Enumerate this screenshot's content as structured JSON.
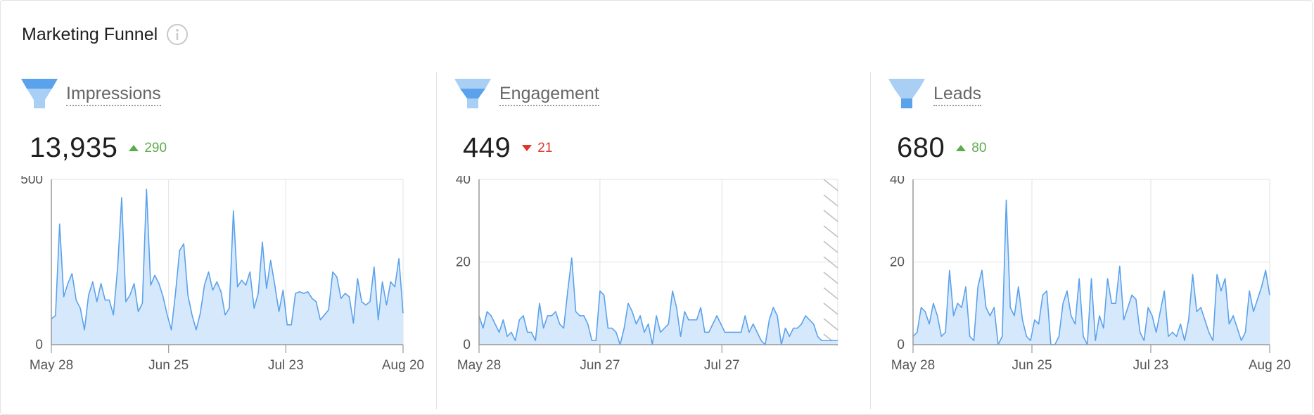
{
  "header": {
    "title": "Marketing Funnel",
    "info_icon": "info-circle-icon"
  },
  "colors": {
    "line": "#5aa2ec",
    "fill": "#d6e8fb",
    "up": "#5cab4d",
    "down": "#e0352b",
    "grid": "#e2e2e2",
    "funnel_dark": "#5aa2ec",
    "funnel_light": "#a9cff5"
  },
  "panels": [
    {
      "name": "Impressions",
      "value": "13,935",
      "delta": "290",
      "direction": "up",
      "icon": "funnel-top-icon"
    },
    {
      "name": "Engagement",
      "value": "449",
      "delta": "21",
      "direction": "down",
      "icon": "funnel-middle-icon"
    },
    {
      "name": "Leads",
      "value": "680",
      "delta": "80",
      "direction": "up",
      "icon": "funnel-bottom-icon"
    }
  ],
  "chart_data": [
    {
      "type": "area",
      "title": "Impressions",
      "x_ticks": [
        "May 28",
        "Jun 25",
        "Jul 23",
        "Aug 20"
      ],
      "y_ticks": [
        "0",
        "500"
      ],
      "ylim": [
        0,
        500
      ],
      "grid": true,
      "values": [
        78,
        88,
        365,
        145,
        185,
        215,
        135,
        110,
        45,
        150,
        190,
        130,
        185,
        135,
        135,
        90,
        230,
        445,
        130,
        150,
        185,
        100,
        125,
        470,
        180,
        210,
        185,
        145,
        90,
        45,
        155,
        285,
        305,
        150,
        90,
        45,
        95,
        180,
        220,
        165,
        190,
        160,
        90,
        110,
        405,
        175,
        195,
        180,
        220,
        110,
        155,
        310,
        170,
        255,
        180,
        100,
        165,
        60,
        60,
        155,
        160,
        155,
        160,
        140,
        130,
        75,
        90,
        105,
        220,
        205,
        140,
        155,
        145,
        65,
        200,
        130,
        120,
        130,
        235,
        75,
        190,
        120,
        190,
        175,
        260,
        95
      ]
    },
    {
      "type": "area",
      "title": "Engagement",
      "x_ticks": [
        "May 28",
        "Jun 27",
        "Jul 27"
      ],
      "y_ticks": [
        "0",
        "20",
        "40"
      ],
      "ylim": [
        0,
        40
      ],
      "grid": true,
      "values": [
        7,
        4,
        8,
        7,
        5,
        3,
        6,
        2,
        3,
        1,
        6,
        7,
        3,
        3,
        1,
        10,
        4,
        7,
        7,
        8,
        5,
        4,
        13,
        21,
        8,
        7,
        7,
        5,
        1,
        1,
        13,
        12,
        4,
        4,
        3,
        0,
        4,
        10,
        8,
        5,
        7,
        3,
        5,
        0,
        7,
        3,
        4,
        5,
        13,
        9,
        2,
        8,
        6,
        6,
        6,
        9,
        3,
        3,
        5,
        7,
        5,
        3,
        3,
        3,
        3,
        3,
        7,
        3,
        5,
        3,
        1,
        0,
        6,
        9,
        7,
        0,
        4,
        2,
        4,
        4,
        5,
        7,
        6,
        5,
        2,
        1,
        1,
        1,
        1,
        1
      ]
    },
    {
      "type": "area",
      "title": "Leads",
      "x_ticks": [
        "May 28",
        "Jun 25",
        "Jul 23",
        "Aug 20"
      ],
      "y_ticks": [
        "0",
        "20",
        "40"
      ],
      "ylim": [
        0,
        40
      ],
      "grid": true,
      "values": [
        2,
        3,
        9,
        8,
        5,
        10,
        7,
        2,
        3,
        18,
        7,
        10,
        9,
        14,
        2,
        1,
        14,
        18,
        9,
        7,
        9,
        0,
        2,
        35,
        9,
        7,
        14,
        6,
        2,
        1,
        6,
        5,
        12,
        13,
        0,
        0,
        2,
        10,
        13,
        7,
        5,
        16,
        2,
        0,
        16,
        1,
        7,
        4,
        16,
        10,
        10,
        19,
        6,
        9,
        12,
        11,
        3,
        1,
        9,
        7,
        3,
        8,
        13,
        2,
        3,
        2,
        5,
        1,
        6,
        17,
        8,
        9,
        6,
        3,
        1,
        17,
        13,
        16,
        5,
        7,
        4,
        1,
        3,
        13,
        8,
        11,
        14,
        18,
        12
      ]
    }
  ]
}
